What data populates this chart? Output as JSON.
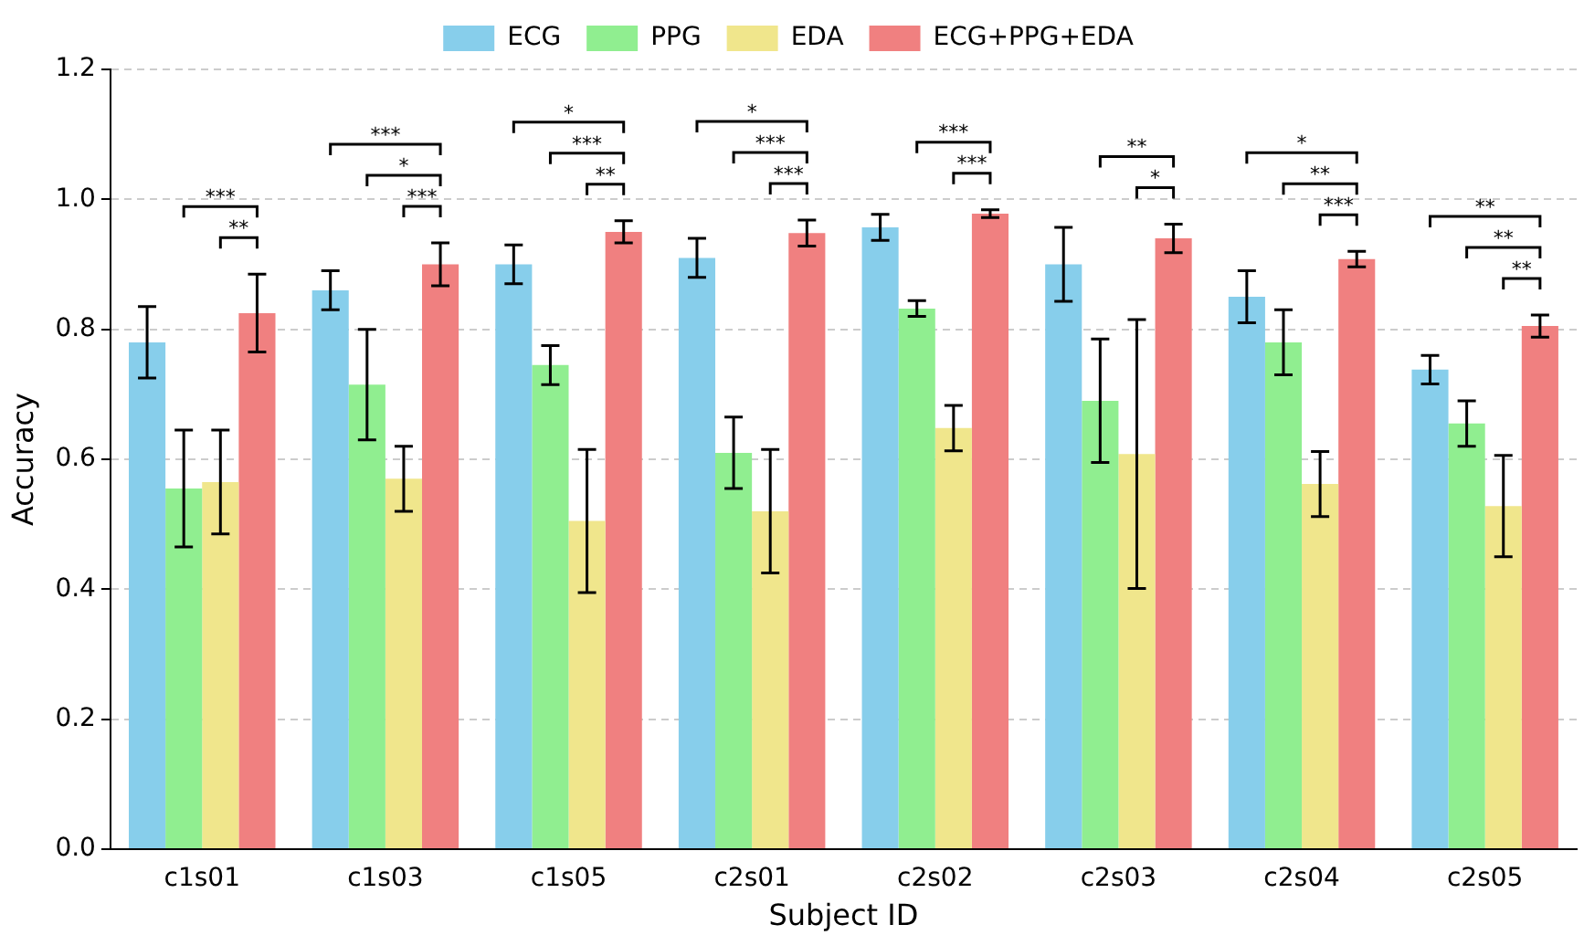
{
  "chart_data": {
    "type": "bar",
    "xlabel": "Subject ID",
    "ylabel": "Accuracy",
    "categories": [
      "c1s01",
      "c1s03",
      "c1s05",
      "c2s01",
      "c2s02",
      "c2s03",
      "c2s04",
      "c2s05"
    ],
    "series": [
      {
        "name": "ECG",
        "color": "#87ceeb",
        "values": [
          0.78,
          0.86,
          0.9,
          0.91,
          0.957,
          0.9,
          0.85,
          0.738
        ],
        "errors": [
          0.055,
          0.03,
          0.03,
          0.03,
          0.02,
          0.057,
          0.04,
          0.022
        ]
      },
      {
        "name": "PPG",
        "color": "#90ee90",
        "values": [
          0.555,
          0.715,
          0.745,
          0.61,
          0.832,
          0.69,
          0.78,
          0.655
        ],
        "errors": [
          0.09,
          0.085,
          0.03,
          0.055,
          0.012,
          0.095,
          0.05,
          0.035
        ]
      },
      {
        "name": "EDA",
        "color": "#f0e68c",
        "values": [
          0.565,
          0.57,
          0.505,
          0.52,
          0.648,
          0.608,
          0.562,
          0.528
        ],
        "errors": [
          0.08,
          0.05,
          0.11,
          0.095,
          0.035,
          0.207,
          0.05,
          0.078
        ]
      },
      {
        "name": "ECG+PPG+EDA",
        "color": "#f08080",
        "values": [
          0.825,
          0.9,
          0.95,
          0.948,
          0.978,
          0.94,
          0.908,
          0.805
        ],
        "errors": [
          0.06,
          0.033,
          0.017,
          0.02,
          0.006,
          0.022,
          0.012,
          0.017
        ]
      }
    ],
    "ylim": [
      0,
      1.2
    ],
    "yticks": [
      {
        "value": 0,
        "label": "0.0"
      },
      {
        "value": 0.2,
        "label": "0.2"
      },
      {
        "value": 0.4,
        "label": "0.4"
      },
      {
        "value": 0.6,
        "label": "0.6"
      },
      {
        "value": 0.8,
        "label": "0.8"
      },
      {
        "value": 1,
        "label": "1.0"
      },
      {
        "value": 1.2,
        "label": "1.2"
      }
    ],
    "grid": "y",
    "legend": "top",
    "annotations": [
      "***",
      "**",
      "***",
      "*",
      "***",
      "*",
      "***",
      "**",
      "*",
      "***",
      "***",
      "***",
      "***",
      "**",
      "*",
      "*",
      "**",
      "***",
      "**",
      "**",
      "**"
    ]
  }
}
